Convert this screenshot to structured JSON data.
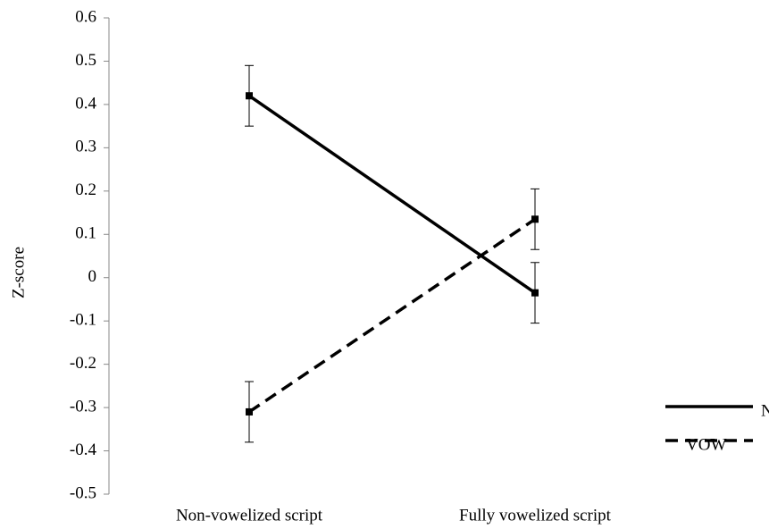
{
  "chart_data": {
    "type": "line",
    "y_label": "Z-score",
    "categories": [
      "Non-vowelized script",
      "Fully vowelized script"
    ],
    "series": [
      {
        "name": "NOVOW",
        "color": "#000000",
        "line_style": "solid",
        "values": [
          0.42,
          -0.035
        ],
        "errors": [
          0.07,
          0.07
        ]
      },
      {
        "name": "VOW",
        "color": "#000000",
        "line_style": "dashed",
        "values": [
          -0.31,
          0.135
        ],
        "errors": [
          0.07,
          0.07
        ]
      }
    ],
    "ylim": [
      -0.5,
      0.6
    ],
    "yticks": [
      -0.5,
      -0.4,
      -0.3,
      -0.2,
      -0.1,
      0,
      0.1,
      0.2,
      0.3,
      0.4,
      0.5,
      0.6
    ],
    "grid": false,
    "legend": "lower right"
  }
}
